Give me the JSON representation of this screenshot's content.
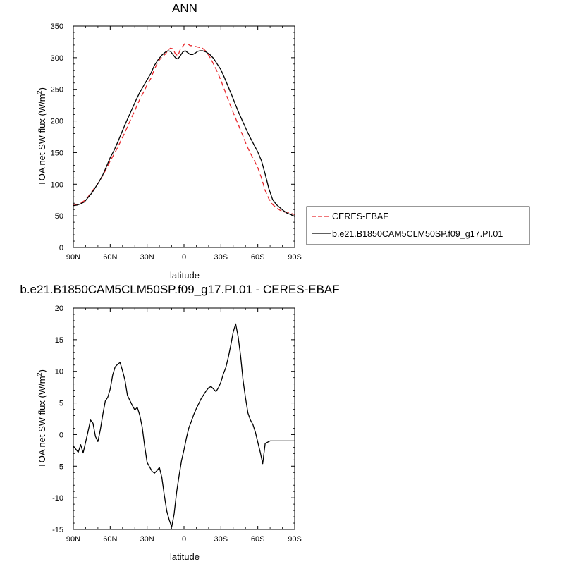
{
  "chart_data": [
    {
      "type": "line",
      "title": "ANN",
      "xlabel": "latitude",
      "ylabel": "TOA net SW flux (W/m",
      "ylabel_sup": "2",
      "ylabel_close": ")",
      "xlim": [
        90,
        -90
      ],
      "ylim": [
        0,
        350
      ],
      "x_ticks": [
        90,
        60,
        30,
        0,
        -30,
        -60,
        -90
      ],
      "x_tick_labels": [
        "90N",
        "60N",
        "30N",
        "0",
        "30S",
        "60S",
        "90S"
      ],
      "y_ticks": [
        0,
        50,
        100,
        150,
        200,
        250,
        300,
        350
      ],
      "y_tick_labels": [
        "0",
        "50",
        "100",
        "150",
        "200",
        "250",
        "300",
        "350"
      ],
      "legend_position": "right",
      "series": [
        {
          "name": "CERES-EBAF",
          "color": "#e8262b",
          "dash": "dashed",
          "x": [
            90,
            87,
            84,
            81,
            78,
            75,
            72,
            69,
            66,
            63,
            60,
            57,
            54,
            51,
            48,
            45,
            42,
            39,
            36,
            33,
            30,
            27,
            24,
            21,
            18,
            15,
            13,
            11,
            9,
            7,
            5,
            3,
            1,
            -1,
            -3,
            -5,
            -7,
            -9,
            -11,
            -13,
            -15,
            -18,
            -21,
            -24,
            -27,
            -30,
            -33,
            -36,
            -39,
            -42,
            -45,
            -48,
            -51,
            -54,
            -57,
            -60,
            -63,
            -66,
            -69,
            -72,
            -75,
            -78,
            -81,
            -84,
            -87,
            -90
          ],
          "y": [
            68,
            68,
            70,
            74,
            80,
            88,
            96,
            104,
            114,
            125,
            137,
            147,
            158,
            170,
            182,
            195,
            208,
            221,
            234,
            245,
            257,
            267,
            282,
            294,
            301,
            306,
            312,
            315,
            314,
            306,
            303,
            313,
            318,
            323,
            322,
            319,
            319,
            318,
            317,
            316,
            315,
            310,
            301,
            290,
            278,
            264,
            249,
            233,
            218,
            204,
            190,
            176,
            161,
            149,
            138,
            126,
            110,
            90,
            77,
            68,
            63,
            59,
            56,
            56,
            54,
            52
          ]
        },
        {
          "name": "b.e21.B1850CAM5CLM50SP.f09_g17.PI.01",
          "color": "#000000",
          "dash": "solid",
          "x": [
            90,
            87,
            84,
            81,
            78,
            75,
            72,
            69,
            66,
            63,
            60,
            57,
            54,
            51,
            48,
            45,
            42,
            39,
            36,
            33,
            30,
            27,
            24,
            21,
            18,
            15,
            13,
            11,
            9,
            7,
            5,
            3,
            1,
            -1,
            -3,
            -5,
            -7,
            -9,
            -11,
            -13,
            -15,
            -18,
            -21,
            -24,
            -27,
            -30,
            -33,
            -36,
            -39,
            -42,
            -45,
            -48,
            -51,
            -54,
            -57,
            -60,
            -63,
            -66,
            -69,
            -72,
            -75,
            -78,
            -81,
            -84,
            -87,
            -90
          ],
          "y": [
            66,
            67,
            69,
            72,
            79,
            86,
            95,
            104,
            115,
            128,
            142,
            153,
            166,
            180,
            194,
            207,
            220,
            233,
            245,
            255,
            265,
            275,
            288,
            297,
            304,
            309,
            311,
            310,
            305,
            300,
            298,
            303,
            309,
            311,
            308,
            305,
            305,
            307,
            310,
            311,
            311,
            309,
            305,
            299,
            290,
            281,
            268,
            254,
            240,
            225,
            211,
            198,
            185,
            173,
            162,
            151,
            137,
            116,
            93,
            76,
            68,
            63,
            58,
            54,
            52,
            49
          ]
        }
      ]
    },
    {
      "type": "line",
      "title": "b.e21.B1850CAM5CLM50SP.f09_g17.PI.01 - CERES-EBAF",
      "xlabel": "latitude",
      "ylabel": "TOA net SW flux (W/m",
      "ylabel_sup": "2",
      "ylabel_close": ")",
      "xlim": [
        90,
        -90
      ],
      "ylim": [
        -15,
        20
      ],
      "x_ticks": [
        90,
        60,
        30,
        0,
        -30,
        -60,
        -90
      ],
      "x_tick_labels": [
        "90N",
        "60N",
        "30N",
        "0",
        "30S",
        "60S",
        "90S"
      ],
      "y_ticks": [
        -15,
        -10,
        -5,
        0,
        5,
        10,
        15,
        20
      ],
      "y_tick_labels": [
        "-15",
        "-10",
        "-5",
        "0",
        "5",
        "10",
        "15",
        "20"
      ],
      "series": [
        {
          "color": "#000000",
          "dash": "solid",
          "x": [
            90,
            88,
            86,
            84,
            82,
            80,
            78,
            76,
            74,
            72,
            70,
            68,
            66,
            64,
            62,
            60,
            58,
            56,
            54,
            52,
            50,
            48,
            46,
            44,
            42,
            40,
            38,
            36,
            34,
            32,
            30,
            28,
            26,
            24,
            22,
            20,
            18,
            16,
            14,
            12,
            10,
            8,
            6,
            4,
            2,
            0,
            -2,
            -4,
            -6,
            -8,
            -10,
            -12,
            -14,
            -16,
            -18,
            -20,
            -22,
            -24,
            -26,
            -28,
            -30,
            -32,
            -34,
            -36,
            -38,
            -40,
            -42,
            -44,
            -46,
            -48,
            -50,
            -52,
            -54,
            -56,
            -58,
            -60,
            -62,
            -64,
            -66,
            -68,
            -70,
            -72,
            -74,
            -76,
            -78,
            -80,
            -82,
            -84,
            -86,
            -88,
            -90
          ],
          "y": [
            -1.8,
            -2.3,
            -2.8,
            -1.6,
            -2.9,
            -1.2,
            0.5,
            2.3,
            1.8,
            -0.3,
            -1.1,
            0.8,
            3.2,
            5.3,
            5.9,
            7.2,
            9.4,
            10.7,
            11.1,
            11.4,
            10.1,
            8.6,
            6.2,
            5.4,
            4.6,
            3.9,
            4.3,
            3.1,
            1.2,
            -1.8,
            -4.4,
            -5.1,
            -5.8,
            -6.1,
            -5.7,
            -5.2,
            -6.8,
            -9.6,
            -12.1,
            -13.5,
            -14.6,
            -12.5,
            -9.1,
            -6.5,
            -4.1,
            -2.4,
            -0.5,
            1.1,
            2.1,
            3.2,
            4.1,
            4.9,
            5.7,
            6.3,
            6.9,
            7.4,
            7.6,
            7.2,
            6.8,
            7.4,
            8.3,
            9.6,
            10.6,
            12.2,
            14.1,
            16.2,
            17.5,
            15.5,
            12.5,
            8.6,
            5.8,
            3.4,
            2.3,
            1.6,
            0.4,
            -1.2,
            -2.8,
            -4.6,
            -1.4,
            -1.2,
            -1.0,
            -1.0,
            -1.0,
            -1.0,
            -1.0,
            -1.0,
            -1.0,
            -1.0,
            -1.0,
            -1.0,
            -1.0
          ]
        }
      ]
    }
  ]
}
